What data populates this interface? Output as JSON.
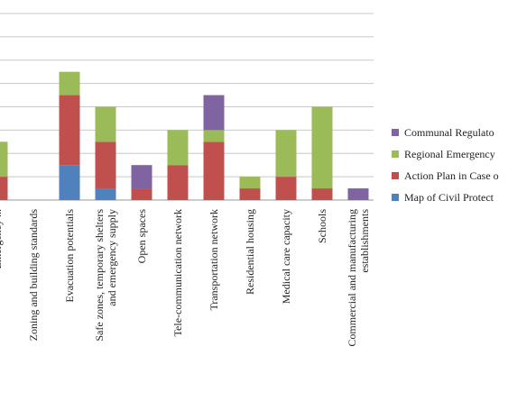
{
  "chart_data": {
    "type": "bar",
    "stacked": true,
    "title": "",
    "xlabel": "",
    "ylabel": "",
    "ylim": [
      0,
      8
    ],
    "grid": true,
    "legend_position": "right",
    "categories": [
      "Emergency ...",
      "Zoning and building standards",
      "Evacuation potentials",
      "Safe zones, temporary shelters and emergency supply",
      "Open spaces",
      "Tele-communication network",
      "Transportation network",
      "Residential housing",
      "Medical care capacity",
      "Schools",
      "Commercial and manufacturing establishments"
    ],
    "series": [
      {
        "name": "Map of Civil Protect",
        "color": "#4f81bd",
        "values": [
          0,
          0,
          1.5,
          0.5,
          0,
          0,
          0,
          0,
          0,
          0,
          0
        ]
      },
      {
        "name": "Action Plan in Case o",
        "color": "#c0504d",
        "values": [
          1,
          0,
          3,
          2,
          0.5,
          1.5,
          2.5,
          0.5,
          1,
          0.5,
          0
        ]
      },
      {
        "name": "Regional Emergency",
        "color": "#9bbb59",
        "values": [
          1.5,
          0,
          1,
          1.5,
          0,
          1.5,
          0.5,
          0.5,
          2,
          3.5,
          0
        ]
      },
      {
        "name": "Communal Regulato",
        "color": "#8064a2",
        "values": [
          0,
          0,
          0,
          0,
          1,
          0,
          1.5,
          0,
          0,
          0,
          0.5
        ]
      }
    ]
  }
}
